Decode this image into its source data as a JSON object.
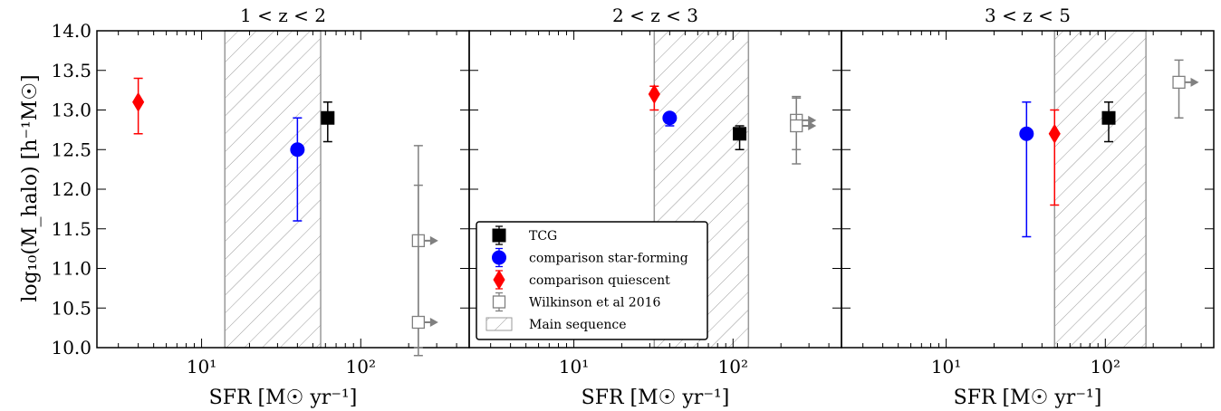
{
  "chart_data": {
    "type": "scatter",
    "ylabel": "log₁₀(M_halo) [h⁻¹M☉]",
    "xlabel": "SFR [M☉ yr⁻¹]",
    "ylim": [
      10.0,
      14.0
    ],
    "yticks": [
      "10.0",
      "10.5",
      "11.0",
      "11.5",
      "12.0",
      "12.5",
      "13.0",
      "13.5",
      "14.0"
    ],
    "xscale": "log",
    "xlim": [
      2.2,
      480
    ],
    "xticks": [
      "10¹",
      "10²"
    ],
    "grid": false,
    "legend_position": "lower-left of middle panel",
    "colors": {
      "TCG": "#000000",
      "comparison star-forming": "#0000ff",
      "comparison quiescent": "#ff0000",
      "Wilkinson et al 2016": "#808080",
      "Main sequence": "#aaaaaa"
    },
    "legend": [
      {
        "label": "TCG",
        "marker": "square"
      },
      {
        "label": "comparison star-forming",
        "marker": "circle"
      },
      {
        "label": "comparison quiescent",
        "marker": "diamond"
      },
      {
        "label": "Wilkinson et al 2016",
        "marker": "open-square"
      },
      {
        "label": "Main sequence",
        "marker": "hatch"
      }
    ],
    "panels": [
      {
        "title": "1 < z < 2",
        "main_sequence": [
          14,
          56
        ],
        "series": [
          {
            "name": "TCG",
            "points": [
              {
                "x": 62,
                "y": 12.9,
                "yerr_low": 0.3,
                "yerr_high": 0.2
              }
            ]
          },
          {
            "name": "comparison star-forming",
            "points": [
              {
                "x": 40,
                "y": 12.5,
                "yerr_low": 0.9,
                "yerr_high": 0.4
              }
            ]
          },
          {
            "name": "comparison quiescent",
            "points": [
              {
                "x": 4,
                "y": 13.1,
                "yerr_low": 0.4,
                "yerr_high": 0.3
              }
            ]
          },
          {
            "name": "Wilkinson et al 2016",
            "points": [
              {
                "x": 230,
                "y": 11.35,
                "yerr_low": 1.35,
                "yerr_high": 1.2,
                "lower_limit_x": true
              },
              {
                "x": 230,
                "y": 10.32,
                "yerr_low": 0.42,
                "yerr_high": 1.73,
                "lower_limit_x": true
              }
            ]
          }
        ]
      },
      {
        "title": "2 < z < 3",
        "main_sequence": [
          32,
          125
        ],
        "series": [
          {
            "name": "TCG",
            "points": [
              {
                "x": 110,
                "y": 12.7,
                "yerr_low": 0.2,
                "yerr_high": 0.1
              }
            ]
          },
          {
            "name": "comparison star-forming",
            "points": [
              {
                "x": 40,
                "y": 12.9,
                "yerr_low": 0.1,
                "yerr_high": 0.05
              }
            ]
          },
          {
            "name": "comparison quiescent",
            "points": [
              {
                "x": 32,
                "y": 13.2,
                "yerr_low": 0.2,
                "yerr_high": 0.1
              }
            ]
          },
          {
            "name": "Wilkinson et al 2016",
            "points": [
              {
                "x": 250,
                "y": 12.87,
                "yerr_low": 0.55,
                "yerr_high": 0.3,
                "lower_limit_x": true
              },
              {
                "x": 250,
                "y": 12.8,
                "yerr_low": 0.3,
                "yerr_high": 0.35,
                "lower_limit_x": true
              }
            ]
          }
        ]
      },
      {
        "title": "3 < z < 5",
        "main_sequence": [
          48,
          180
        ],
        "series": [
          {
            "name": "TCG",
            "points": [
              {
                "x": 105,
                "y": 12.9,
                "yerr_low": 0.3,
                "yerr_high": 0.2
              }
            ]
          },
          {
            "name": "comparison star-forming",
            "points": [
              {
                "x": 32,
                "y": 12.7,
                "yerr_low": 1.3,
                "yerr_high": 0.4
              }
            ]
          },
          {
            "name": "comparison quiescent",
            "points": [
              {
                "x": 48,
                "y": 12.7,
                "yerr_low": 0.9,
                "yerr_high": 0.3
              }
            ]
          },
          {
            "name": "Wilkinson et al 2016",
            "points": [
              {
                "x": 290,
                "y": 13.35,
                "yerr_low": 0.45,
                "yerr_high": 0.28,
                "lower_limit_x": true
              }
            ]
          }
        ]
      }
    ]
  }
}
